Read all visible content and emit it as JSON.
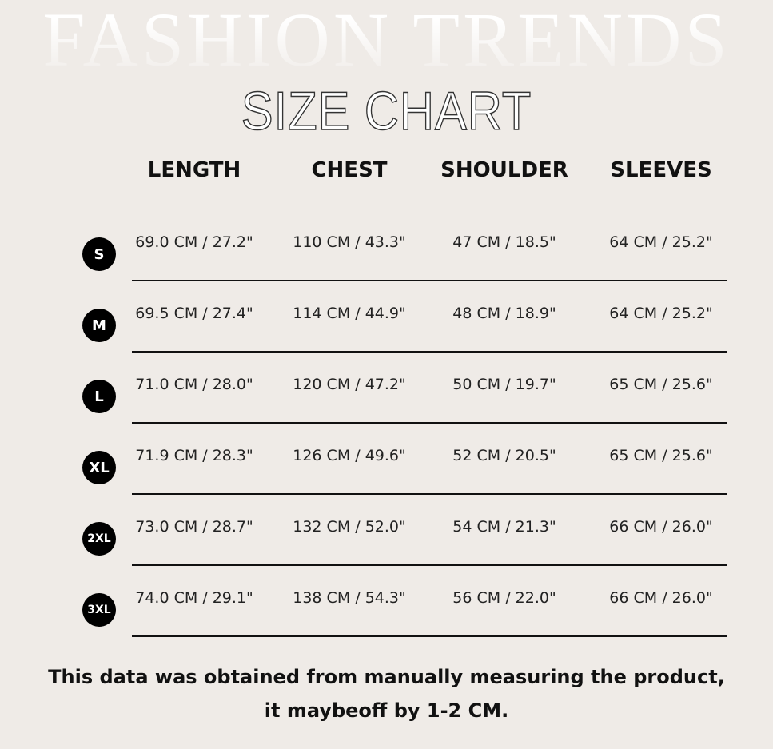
{
  "background_title": "FASHION TRENDS",
  "title": "SIZE CHART",
  "columns": [
    "LENGTH",
    "CHEST",
    "SHOULDER",
    "SLEEVES"
  ],
  "rows": [
    {
      "size": "S",
      "values": [
        "69.0 CM /  27.2\"",
        "110 CM /  43.3\"",
        "47 CM /  18.5\"",
        "64 CM /  25.2\""
      ]
    },
    {
      "size": "M",
      "values": [
        "69.5 CM /  27.4\"",
        "114 CM /  44.9\"",
        "48 CM /  18.9\"",
        "64 CM /  25.2\""
      ]
    },
    {
      "size": "L",
      "values": [
        "71.0 CM /  28.0\"",
        "120 CM /  47.2\"",
        "50 CM /  19.7\"",
        "65 CM /  25.6\""
      ]
    },
    {
      "size": "XL",
      "values": [
        "71.9 CM /  28.3\"",
        "126 CM /  49.6\"",
        "52 CM /  20.5\"",
        "65 CM /  25.6\""
      ]
    },
    {
      "size": "2XL",
      "values": [
        "73.0 CM /  28.7\"",
        "132 CM /  52.0\"",
        "54 CM /  21.3\"",
        "66 CM /  26.0\""
      ]
    },
    {
      "size": "3XL",
      "values": [
        "74.0 CM /  29.1\"",
        "138 CM /  54.3\"",
        "56 CM /  22.0\"",
        "66 CM /  26.0\""
      ]
    }
  ],
  "note": "This data was obtained from manually measuring the product, it maybeoff by 1-2 CM."
}
